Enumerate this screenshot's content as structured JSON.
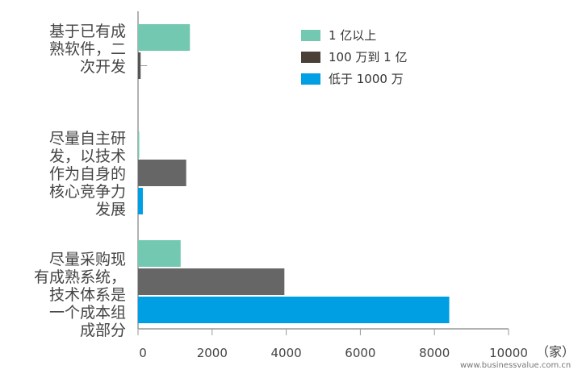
{
  "chart_data": {
    "type": "bar",
    "orientation": "horizontal",
    "categories": [
      [
        "基于已有成",
        "熟软件，二",
        "次开发"
      ],
      [
        "尽量自主研",
        "发，以技术",
        "作为自身的",
        "核心竞争力",
        "发展"
      ],
      [
        "尽量采购现",
        "有成熟系统，",
        "技术体系是",
        "一个成本组",
        "成部分"
      ]
    ],
    "series": [
      {
        "name": "1 亿以上",
        "color": "#72c8b0",
        "values": [
          1400,
          20,
          1150
        ]
      },
      {
        "name": "100 万到 1 亿",
        "color": "#4a4038",
        "values": [
          70,
          1300,
          3950
        ]
      },
      {
        "name": "低于 1000 万",
        "color": "#009fe3",
        "values": [
          null,
          130,
          8400
        ]
      }
    ],
    "bar_colors_by_category": [
      [
        "#72c8b0",
        "#555555",
        "#009fe3"
      ],
      [
        "#72c8b0",
        "#666666",
        "#009fe3"
      ],
      [
        "#72c8b0",
        "#666666",
        "#009fe3"
      ]
    ],
    "xlim": [
      0,
      10000
    ],
    "xticks": [
      "0",
      "2000",
      "4000",
      "6000",
      "8000",
      "10000"
    ],
    "xunit": "（家）",
    "legend_placement": "top-right",
    "grid": false
  },
  "watermark": "www.businessvalue.com.cn"
}
